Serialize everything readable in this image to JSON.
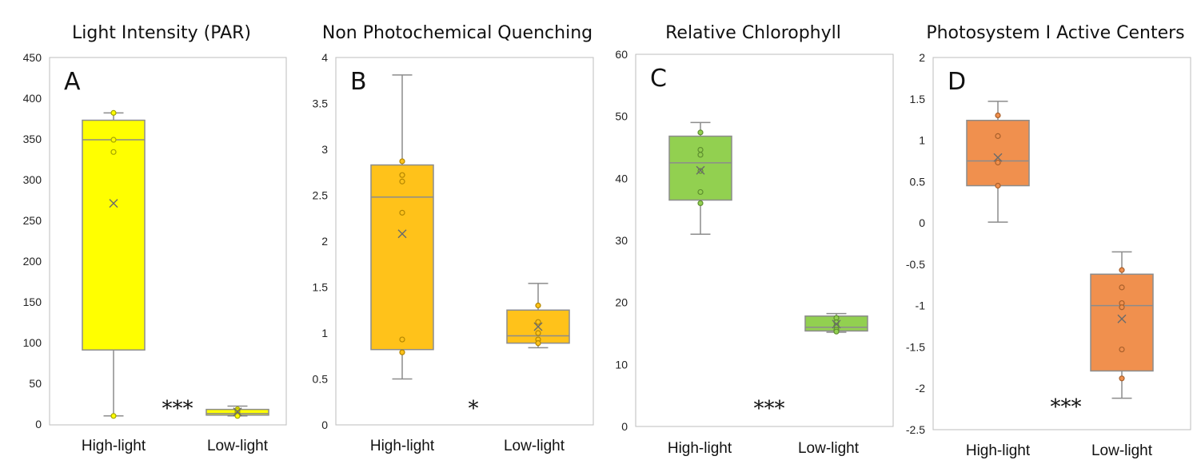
{
  "chart_data": [
    {
      "type": "box",
      "panel_letter": "A",
      "title": "Light Intensity (PAR)",
      "ylim": [
        0,
        450
      ],
      "yticks": [
        "0",
        "50",
        "100",
        "150",
        "200",
        "250",
        "300",
        "350",
        "400",
        "450"
      ],
      "categories": [
        "High-light",
        "Low-light"
      ],
      "significance": "***",
      "color": "#FFFF00",
      "stroke": "#A5A500",
      "boxes": [
        {
          "name": "High-light",
          "min": 10,
          "q1": 91,
          "median": 349,
          "q3": 373,
          "max": 382,
          "mean": 271,
          "points": [
            382,
            349,
            334,
            10
          ]
        },
        {
          "name": "Low-light",
          "min": 10,
          "q1": 11,
          "median": 13,
          "q3": 18,
          "max": 22,
          "mean": 15,
          "points": [
            18,
            16,
            14,
            12,
            11,
            10
          ]
        }
      ]
    },
    {
      "type": "box",
      "panel_letter": "B",
      "title": "Non Photochemical Quenching",
      "ylim": [
        0,
        4
      ],
      "yticks": [
        "0",
        "0.5",
        "1",
        "1.5",
        "2",
        "2.5",
        "3",
        "3.5",
        "4"
      ],
      "categories": [
        "High-light",
        "Low-light"
      ],
      "significance": "*",
      "color": "#FFC21A",
      "stroke": "#B38600",
      "boxes": [
        {
          "name": "High-light",
          "min": 0.5,
          "q1": 0.82,
          "median": 2.48,
          "q3": 2.83,
          "max": 3.81,
          "mean": 2.08,
          "points": [
            2.87,
            2.72,
            2.65,
            2.31,
            0.93,
            0.79
          ]
        },
        {
          "name": "Low-light",
          "min": 0.84,
          "q1": 0.89,
          "median": 0.97,
          "q3": 1.25,
          "max": 1.54,
          "mean": 1.07,
          "points": [
            1.3,
            1.12,
            1.0,
            0.93,
            0.89
          ]
        }
      ]
    },
    {
      "type": "box",
      "panel_letter": "C",
      "title": "Relative Chlorophyll",
      "ylim": [
        0,
        60
      ],
      "yticks": [
        "0",
        "10",
        "20",
        "30",
        "40",
        "50",
        "60"
      ],
      "categories": [
        "High-light",
        "Low-light"
      ],
      "significance": "***",
      "color": "#92D050",
      "stroke": "#5E8F2E",
      "boxes": [
        {
          "name": "High-light",
          "min": 31,
          "q1": 36.5,
          "median": 42.5,
          "q3": 46.8,
          "max": 49,
          "mean": 41.3,
          "points": [
            47.4,
            44.6,
            43.8,
            41.2,
            37.8,
            36
          ]
        },
        {
          "name": "Low-light",
          "min": 15.2,
          "q1": 15.4,
          "median": 16,
          "q3": 17.8,
          "max": 18.2,
          "mean": 16.5,
          "points": [
            17.5,
            16.8,
            16.2,
            15.6,
            15.3
          ]
        }
      ]
    },
    {
      "type": "box",
      "panel_letter": "D",
      "title": "Photosystem I Active Centers",
      "ylim": [
        -2.5,
        2
      ],
      "yticks": [
        "-2.5",
        "-2",
        "-1.5",
        "-1",
        "-0.5",
        "0",
        "0.5",
        "1",
        "1.5",
        "2"
      ],
      "categories": [
        "High-light",
        "Low-light"
      ],
      "significance": "***",
      "color": "#F0904E",
      "stroke": "#A85F2A",
      "boxes": [
        {
          "name": "High-light",
          "min": 0.01,
          "q1": 0.45,
          "median": 0.75,
          "q3": 1.24,
          "max": 1.47,
          "mean": 0.79,
          "points": [
            1.3,
            1.05,
            0.73,
            0.45
          ]
        },
        {
          "name": "Low-light",
          "min": -2.12,
          "q1": -1.79,
          "median": -1.0,
          "q3": -0.62,
          "max": -0.35,
          "mean": -1.16,
          "points": [
            -0.57,
            -0.78,
            -0.97,
            -1.02,
            -1.53,
            -1.88
          ]
        }
      ]
    }
  ]
}
